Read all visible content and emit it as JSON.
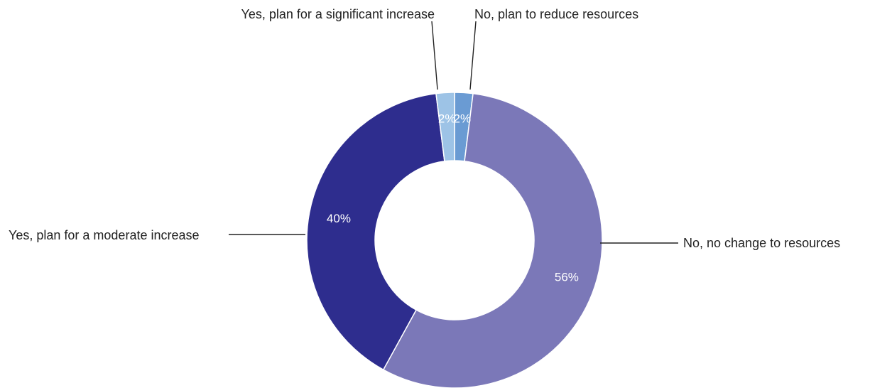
{
  "chart_data": {
    "type": "pie",
    "donut": true,
    "slices": [
      {
        "label": "No, plan to reduce resources",
        "value": 2,
        "value_label": "2%",
        "color": "#6a9bd3"
      },
      {
        "label": "No, no change to resources",
        "value": 56,
        "value_label": "56%",
        "color": "#7b78b8"
      },
      {
        "label": "Yes, plan for a moderate increase",
        "value": 40,
        "value_label": "40%",
        "color": "#2e2d8e"
      },
      {
        "label": "Yes, plan for a significant increase",
        "value": 2,
        "value_label": "2%",
        "color": "#9dc3e6"
      }
    ],
    "start_angle_deg": 0,
    "direction": "clockwise",
    "labels_with_leader_lines": true
  }
}
